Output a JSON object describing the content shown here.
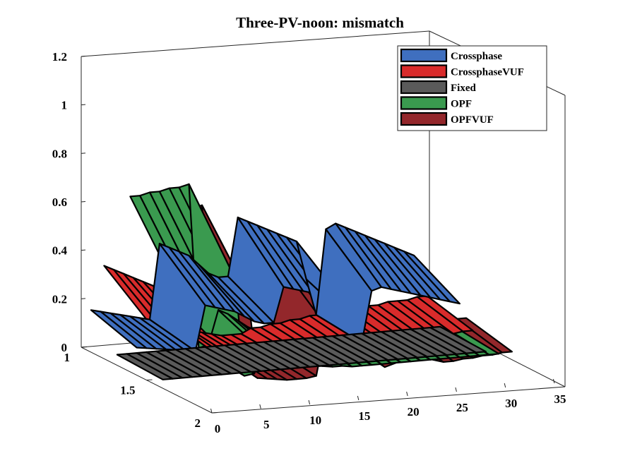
{
  "chart_data": {
    "type": "area",
    "title": "Three-PV-noon: mismatch",
    "xlabel": "",
    "ylabel": "",
    "zlabel": "",
    "xlim": [
      0,
      35
    ],
    "ylim": [
      1,
      2
    ],
    "zlim": [
      0,
      1.2
    ],
    "x_ticks": [
      "0",
      "5",
      "10",
      "15",
      "20",
      "25",
      "30",
      "35"
    ],
    "y_ticks": [
      "1",
      "1.5",
      "2"
    ],
    "z_ticks": [
      "0",
      "0.2",
      "0.4",
      "0.6",
      "0.8",
      "1",
      "1.2"
    ],
    "legend_position": "top-right",
    "series": [
      {
        "name": "Crossphase",
        "color": "#3f6fbf",
        "values": [
          0.15,
          0.14,
          0.13,
          0.12,
          0.11,
          0.1,
          0.09,
          0.4,
          0.38,
          0.36,
          0.34,
          0.3,
          0.26,
          0.24,
          0.24,
          0.48,
          0.46,
          0.44,
          0.42,
          0.4,
          0.38,
          0.36,
          0.2,
          0.05,
          0.4,
          0.42,
          0.4,
          0.38,
          0.36,
          0.34,
          0.32,
          0.3,
          0.28,
          0.26
        ]
      },
      {
        "name": "CrossphaseVUF",
        "color": "#d92b2b",
        "values": [
          0.36,
          0.34,
          0.32,
          0.3,
          0.28,
          0.26,
          0.24,
          0.1,
          0.08,
          0.06,
          0.05,
          0.04,
          0.03,
          0.03,
          0.03,
          0.05,
          0.05,
          0.06,
          0.06,
          0.07,
          0.07,
          0.08,
          0.08,
          0.08,
          0.09,
          0.09,
          0.1,
          0.1,
          0.1,
          0.11,
          0.11,
          0.11,
          0.12,
          0.12
        ]
      },
      {
        "name": "Fixed",
        "color": "#5a5a5a",
        "values": [
          0.02,
          0.02,
          0.02,
          0.02,
          0.02,
          0.02,
          0.02,
          0.02,
          0.02,
          0.02,
          0.02,
          0.02,
          0.02,
          0.02,
          0.02,
          0.02,
          0.02,
          0.02,
          0.02,
          0.02,
          0.02,
          0.02,
          0.02,
          0.02,
          0.02,
          0.02,
          0.02,
          0.02,
          0.02,
          0.02,
          0.02,
          0.02,
          0.02,
          0.02
        ]
      },
      {
        "name": "OPF",
        "color": "#3a9a4f",
        "values": [
          0.7,
          0.7,
          0.71,
          0.71,
          0.72,
          0.72,
          0.73,
          0.05,
          0.06,
          0.2,
          0.18,
          0.15,
          0.12,
          0.1,
          0.08,
          0.07,
          0.06,
          0.06,
          0.05,
          0.05,
          0.05,
          0.05,
          0.05,
          0.05,
          0.05,
          0.05,
          0.05,
          0.05,
          0.05,
          0.05,
          0.05,
          0.05,
          0.05,
          0.05
        ]
      },
      {
        "name": "OPFVUF",
        "color": "#93272b",
        "values": [
          0.64,
          0.64,
          0.65,
          0.65,
          0.66,
          0.66,
          0.67,
          0.08,
          0.07,
          0.06,
          0.05,
          0.05,
          0.05,
          0.06,
          0.4,
          0.38,
          0.36,
          0.34,
          0.32,
          0.3,
          0.08,
          0.1,
          0.12,
          0.14,
          0.12,
          0.1,
          0.08,
          0.08,
          0.09,
          0.09,
          0.1,
          0.1,
          0.11,
          0.11
        ]
      }
    ]
  }
}
